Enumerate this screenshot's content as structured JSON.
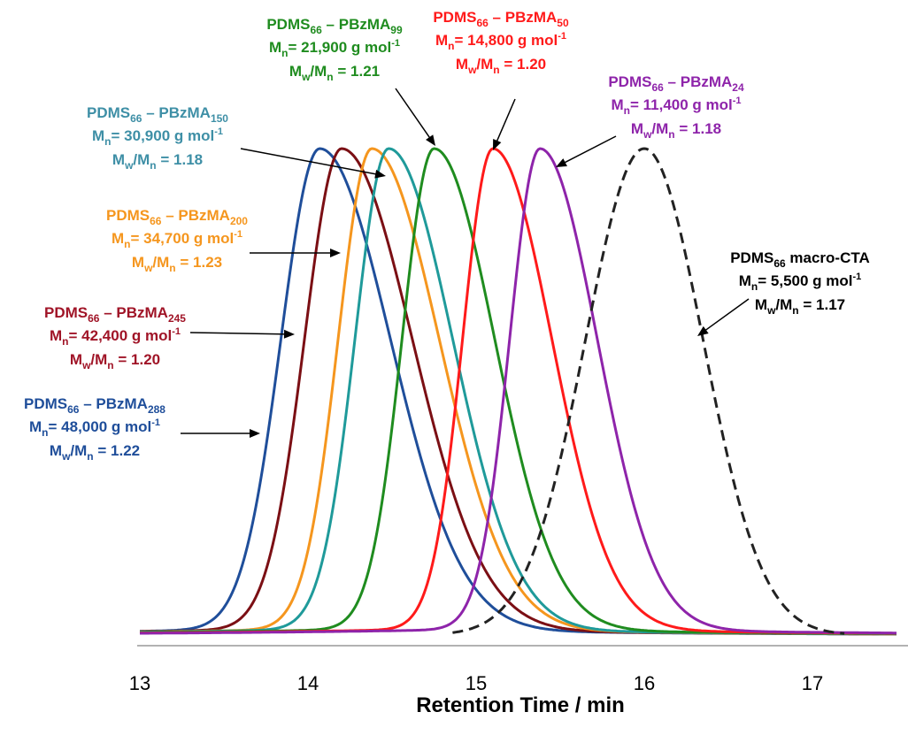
{
  "chart_data": {
    "type": "line",
    "xlabel": "Retention Time / min",
    "ylabel": "",
    "xlim": [
      13,
      17.5
    ],
    "ylim": [
      0,
      1
    ],
    "x_ticks": [
      "13",
      "14",
      "15",
      "16",
      "17"
    ],
    "grid": false,
    "legend": "none",
    "series": [
      {
        "name": "PDMS66 – PBzMA288",
        "peak": 14.07,
        "color": "#1f4e9a",
        "dash": false,
        "sigma_l": 0.23,
        "sigma_r": 0.42
      },
      {
        "name": "PDMS66 – PBzMA245",
        "peak": 14.2,
        "color": "#7b0f14",
        "dash": false,
        "sigma_l": 0.22,
        "sigma_r": 0.42
      },
      {
        "name": "PDMS66 – PBzMA200",
        "peak": 14.38,
        "color": "#f5961e",
        "dash": false,
        "sigma_l": 0.2,
        "sigma_r": 0.4
      },
      {
        "name": "PDMS66 – PBzMA150",
        "peak": 14.48,
        "color": "#1f9a9a",
        "dash": false,
        "sigma_l": 0.2,
        "sigma_r": 0.38
      },
      {
        "name": "PDMS66 – PBzMA99",
        "peak": 14.75,
        "color": "#1f8c1f",
        "dash": false,
        "sigma_l": 0.19,
        "sigma_r": 0.36
      },
      {
        "name": "PDMS66 – PBzMA50",
        "peak": 15.1,
        "color": "#ff1a1a",
        "dash": false,
        "sigma_l": 0.18,
        "sigma_r": 0.35
      },
      {
        "name": "PDMS66 – PBzMA24",
        "peak": 15.38,
        "color": "#8e24aa",
        "dash": false,
        "sigma_l": 0.18,
        "sigma_r": 0.34
      },
      {
        "name": "PDMS66 macro-CTA",
        "peak": 16.0,
        "color": "#222222",
        "dash": true,
        "sigma_l": 0.35,
        "sigma_r": 0.35
      }
    ]
  },
  "annotations": [
    {
      "id": "a99",
      "color": "#1f8c1f",
      "line1_pre": "PDMS",
      "line1_sub1": "66",
      "line1_mid": " – PBzMA",
      "line1_sub2": "99",
      "mn": "= 21,900 g mol",
      "mn_sup": "-1",
      "mw": "= 1.21"
    },
    {
      "id": "a50",
      "color": "#ff1a1a",
      "line1_pre": "PDMS",
      "line1_sub1": "66",
      "line1_mid": " – PBzMA",
      "line1_sub2": "50",
      "mn": "= 14,800 g mol",
      "mn_sup": "-1",
      "mw": "= 1.20"
    },
    {
      "id": "a24",
      "color": "#8e24aa",
      "line1_pre": "PDMS",
      "line1_sub1": "66",
      "line1_mid": " – PBzMA",
      "line1_sub2": "24",
      "mn": "= 11,400 g mol",
      "mn_sup": "-1",
      "mw": "= 1.18"
    },
    {
      "id": "a150",
      "color": "#3e8fa6",
      "line1_pre": "PDMS",
      "line1_sub1": "66",
      "line1_mid": " – PBzMA",
      "line1_sub2": "150",
      "mn": "= 30,900 g mol",
      "mn_sup": "-1",
      "mw": "= 1.18"
    },
    {
      "id": "a200",
      "color": "#f5961e",
      "line1_pre": "PDMS",
      "line1_sub1": "66",
      "line1_mid": " – PBzMA",
      "line1_sub2": "200",
      "mn": "= 34,700 g mol",
      "mn_sup": "-1",
      "mw": "= 1.23"
    },
    {
      "id": "a245",
      "color": "#a01427",
      "line1_pre": "PDMS",
      "line1_sub1": "66",
      "line1_mid": " – PBzMA",
      "line1_sub2": "245",
      "mn": "= 42,400 g mol",
      "mn_sup": "-1",
      "mw": "= 1.20"
    },
    {
      "id": "a288",
      "color": "#1f4e9a",
      "line1_pre": "PDMS",
      "line1_sub1": "66",
      "line1_mid": " – PBzMA",
      "line1_sub2": "288",
      "mn": "= 48,000 g mol",
      "mn_sup": "-1",
      "mw": "= 1.22"
    },
    {
      "id": "acta",
      "color": "#000000",
      "line1_pre": "PDMS",
      "line1_sub1": "66",
      "line1_mid": " macro-CTA",
      "line1_sub2": "",
      "mn": "= 5,500 g mol",
      "mn_sup": "-1",
      "mw": "= 1.17"
    }
  ],
  "labels": {
    "M": "M",
    "n": "n",
    "w": "w",
    "slash": "/"
  }
}
